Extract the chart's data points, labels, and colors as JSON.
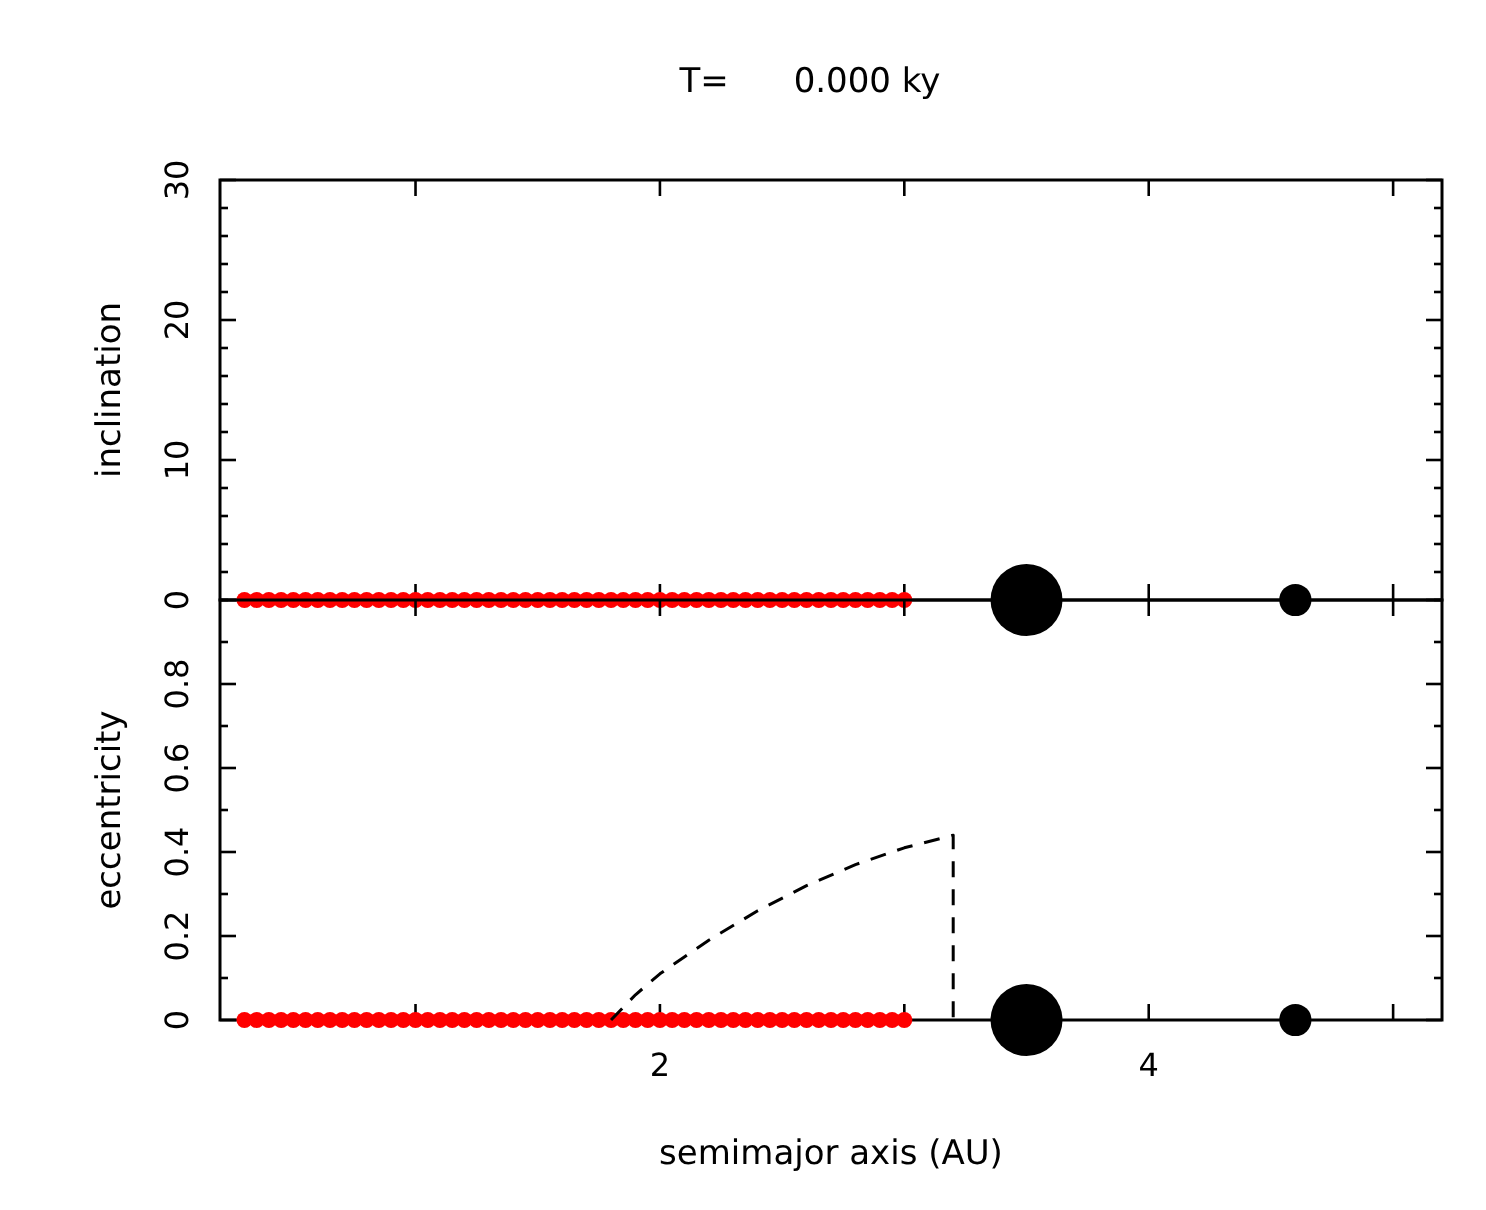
{
  "chart_data": [
    {
      "type": "scatter",
      "title": "T=      0.000 ky",
      "ylabel": "inclination",
      "xlim": [
        0.2,
        5.2
      ],
      "xticks": [
        {
          "value": 1,
          "label": null
        },
        {
          "value": 2,
          "label": null
        },
        {
          "value": 3,
          "label": null
        },
        {
          "value": 4,
          "label": null
        },
        {
          "value": 5,
          "label": null
        }
      ],
      "ylim": [
        0,
        30
      ],
      "yticks": [
        0,
        {
          "value": 2,
          "label": null
        },
        {
          "value": 4,
          "label": null
        },
        {
          "value": 6,
          "label": null
        },
        {
          "value": 8,
          "label": null
        },
        10,
        {
          "value": 12,
          "label": null
        },
        {
          "value": 14,
          "label": null
        },
        {
          "value": 16,
          "label": null
        },
        {
          "value": 18,
          "label": null
        },
        20,
        {
          "value": 22,
          "label": null
        },
        {
          "value": 24,
          "label": null
        },
        {
          "value": 26,
          "label": null
        },
        {
          "value": 28,
          "label": null
        },
        30
      ],
      "tick_labels": "y",
      "series": [
        {
          "color": "#ff0000",
          "marker": "circle",
          "x": [
            0.3,
            0.35,
            0.4,
            0.45,
            0.5,
            0.55,
            0.6,
            0.65,
            0.7,
            0.75,
            0.8,
            0.85,
            0.9,
            0.95,
            1.0,
            1.05,
            1.1,
            1.15,
            1.2,
            1.25,
            1.3,
            1.35,
            1.4,
            1.45,
            1.5,
            1.55,
            1.6,
            1.65,
            1.7,
            1.75,
            1.8,
            1.85,
            1.9,
            1.95,
            2.0,
            2.05,
            2.1,
            2.15,
            2.2,
            2.25,
            2.3,
            2.35,
            2.4,
            2.45,
            2.5,
            2.55,
            2.6,
            2.65,
            2.7,
            2.75,
            2.8,
            2.85,
            2.9,
            2.95,
            3.0
          ],
          "values": [
            0,
            0,
            0,
            0,
            0,
            0,
            0,
            0,
            0,
            0,
            0,
            0,
            0,
            0,
            0,
            0,
            0,
            0,
            0,
            0,
            0,
            0,
            0,
            0,
            0,
            0,
            0,
            0,
            0,
            0,
            0,
            0,
            0,
            0,
            0,
            0,
            0,
            0,
            0,
            0,
            0,
            0,
            0,
            0,
            0,
            0,
            0,
            0,
            0,
            0,
            0,
            0,
            0,
            0,
            0
          ]
        },
        {
          "type": "bubble",
          "color": "#000000",
          "x": [
            3.5,
            4.6
          ],
          "values": [
            0,
            0
          ],
          "sizes": [
            1,
            0.2
          ]
        }
      ]
    },
    {
      "type": "scatter",
      "xlabel": "semimajor axis (AU)",
      "ylabel": "eccentricity",
      "xlim": [
        0.2,
        5.2
      ],
      "xticks": [
        {
          "value": 1,
          "label": null
        },
        2,
        {
          "value": 3,
          "label": null
        },
        4,
        {
          "value": 5,
          "label": null
        }
      ],
      "ylim": [
        0,
        1
      ],
      "yticks": [
        0,
        {
          "value": 0.1,
          "label": null
        },
        0.2,
        {
          "value": 0.3,
          "label": null
        },
        0.4,
        {
          "value": 0.5,
          "label": null
        },
        0.6,
        {
          "value": 0.7,
          "label": null
        },
        0.8,
        {
          "value": 0.9,
          "label": null
        },
        {
          "value": 1,
          "label": null
        }
      ],
      "series": [
        {
          "color": "#ff0000",
          "marker": "circle",
          "x": [
            0.3,
            0.35,
            0.4,
            0.45,
            0.5,
            0.55,
            0.6,
            0.65,
            0.7,
            0.75,
            0.8,
            0.85,
            0.9,
            0.95,
            1.0,
            1.05,
            1.1,
            1.15,
            1.2,
            1.25,
            1.3,
            1.35,
            1.4,
            1.45,
            1.5,
            1.55,
            1.6,
            1.65,
            1.7,
            1.75,
            1.8,
            1.85,
            1.9,
            1.95,
            2.0,
            2.05,
            2.1,
            2.15,
            2.2,
            2.25,
            2.3,
            2.35,
            2.4,
            2.45,
            2.5,
            2.55,
            2.6,
            2.65,
            2.7,
            2.75,
            2.8,
            2.85,
            2.9,
            2.95,
            3.0
          ],
          "values": [
            0,
            0,
            0,
            0,
            0,
            0,
            0,
            0,
            0,
            0,
            0,
            0,
            0,
            0,
            0,
            0,
            0,
            0,
            0,
            0,
            0,
            0,
            0,
            0,
            0,
            0,
            0,
            0,
            0,
            0,
            0,
            0,
            0,
            0,
            0,
            0,
            0,
            0,
            0,
            0,
            0,
            0,
            0,
            0,
            0,
            0,
            0,
            0,
            0,
            0,
            0,
            0,
            0,
            0,
            0
          ]
        },
        {
          "type": "bubble",
          "color": "#000000",
          "x": [
            3.5,
            4.6
          ],
          "values": [
            0,
            0
          ],
          "sizes": [
            1,
            0.2
          ]
        },
        {
          "type": "line",
          "color": "#000000",
          "line_style": "dashed",
          "x": [
            1.8,
            1.9,
            2.0,
            2.2,
            2.4,
            2.6,
            2.8,
            3.0,
            3.2,
            3.2
          ],
          "values": [
            0,
            0.06,
            0.11,
            0.19,
            0.26,
            0.32,
            0.37,
            0.41,
            0.44,
            0
          ]
        }
      ]
    }
  ]
}
